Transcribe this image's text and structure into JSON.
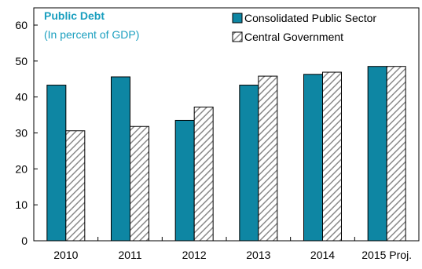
{
  "chart_data": {
    "type": "bar",
    "title": "Public Debt",
    "subtitle": "(In percent of GDP)",
    "categories": [
      "2010",
      "2011",
      "2012",
      "2013",
      "2014",
      "2015 Proj."
    ],
    "series": [
      {
        "name": "Consolidated Public Sector",
        "values": [
          43.3,
          45.6,
          33.5,
          43.3,
          46.3,
          48.5
        ],
        "color": "#0e86a3",
        "pattern": "solid"
      },
      {
        "name": "Central Government",
        "values": [
          30.6,
          31.8,
          37.2,
          45.8,
          46.9,
          48.5
        ],
        "color": "#ffffff",
        "pattern": "diagonal-hatch"
      }
    ],
    "ylim": [
      0,
      60
    ],
    "yticks": [
      0,
      10,
      20,
      30,
      40,
      50,
      60
    ],
    "grid": false,
    "legend_position": "top-right",
    "title_color": "#1a9fbf"
  }
}
